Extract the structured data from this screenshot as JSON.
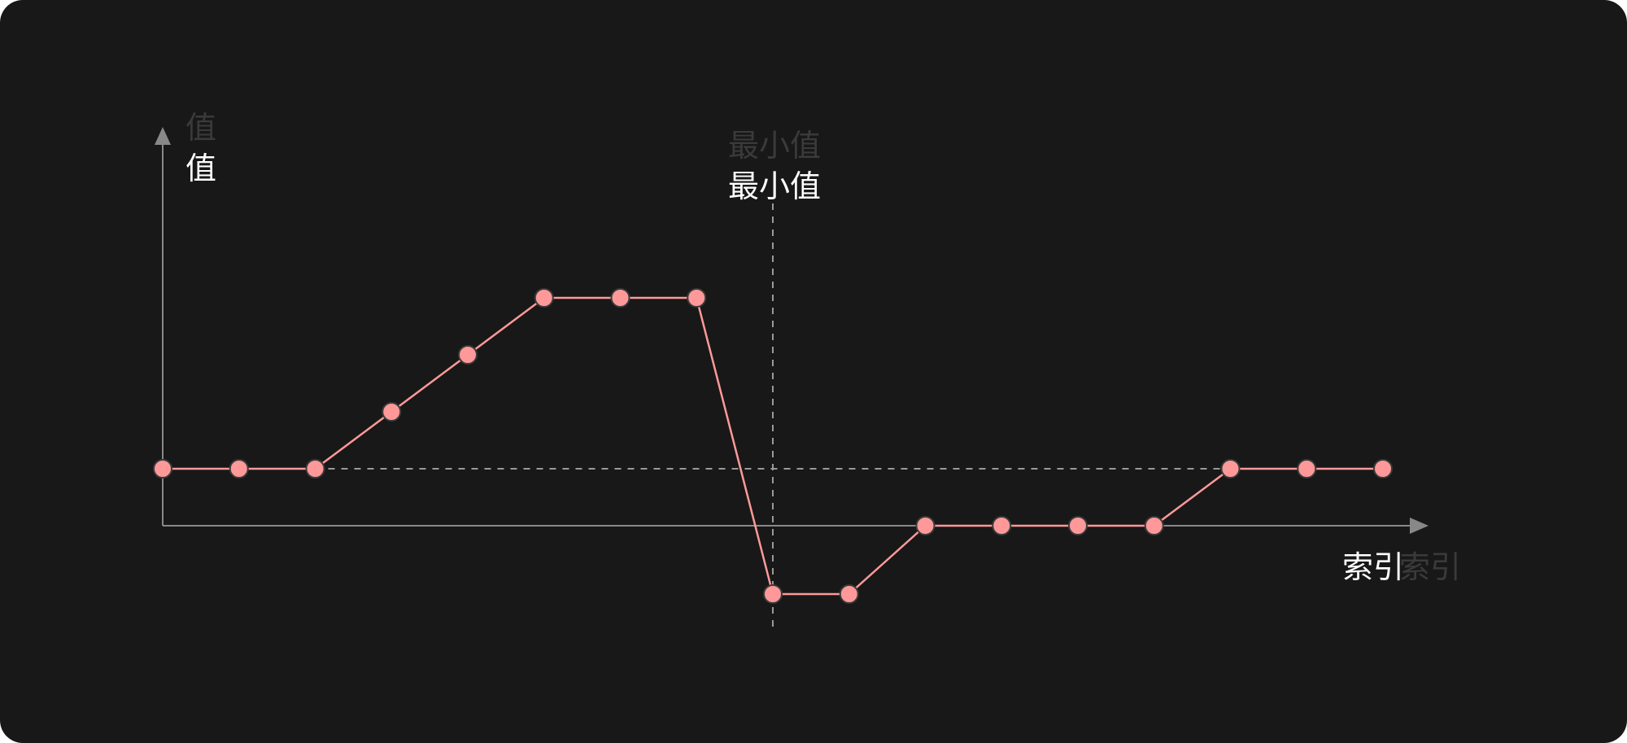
{
  "chart_data": {
    "type": "line",
    "x": [
      0,
      1,
      2,
      3,
      4,
      5,
      6,
      7,
      8,
      9,
      10,
      11,
      12,
      13,
      14,
      15,
      16
    ],
    "values": [
      1,
      1,
      1,
      2,
      3,
      4,
      4,
      4,
      -1.2,
      -1.2,
      0,
      0,
      0,
      0,
      1,
      1,
      1
    ],
    "xlabel": "索引",
    "ylabel": "值",
    "reference_line_y": 1,
    "min_marker": {
      "index": 8,
      "label": "最小值"
    },
    "grid": false,
    "colors": {
      "background": "#181818",
      "axis": "#888888",
      "line": "#ff9999",
      "point_fill": "#ff9999",
      "point_stroke": "#3a3a3a",
      "guide": "#9a9a9a"
    }
  }
}
